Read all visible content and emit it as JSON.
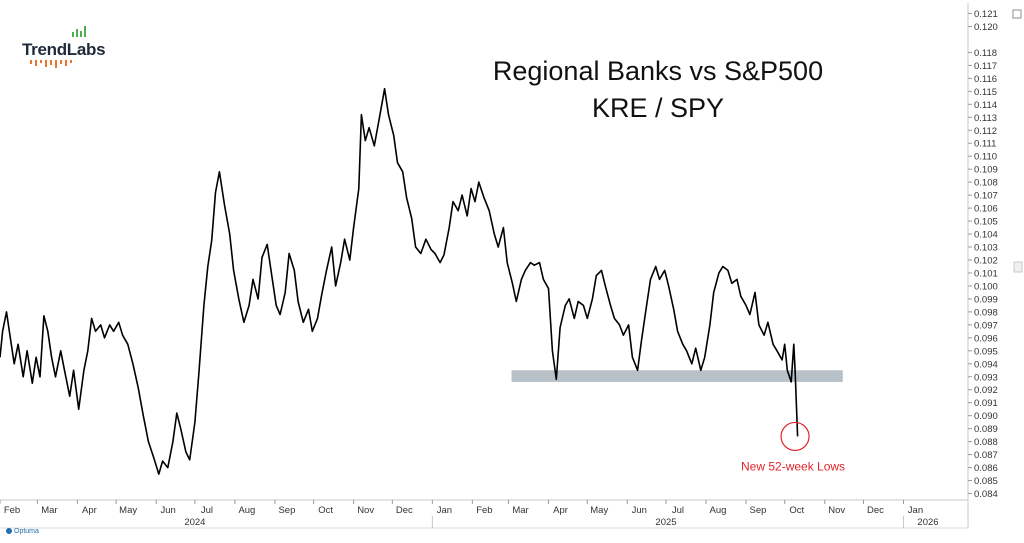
{
  "logo": {
    "text": "TrendLabs"
  },
  "footer": {
    "brand": "Optuma"
  },
  "chart_data": {
    "type": "line",
    "title": "Regional Banks vs S&P500",
    "subtitle": "KRE / SPY",
    "xlabel": "",
    "ylabel": "",
    "ylim": [
      0.0835,
      0.1215
    ],
    "y_ticks": [
      "0.084",
      "0.085",
      "0.086",
      "0.087",
      "0.088",
      "0.089",
      "0.090",
      "0.091",
      "0.092",
      "0.093",
      "0.094",
      "0.095",
      "0.096",
      "0.097",
      "0.098",
      "0.099",
      "0.100",
      "0.101",
      "0.102",
      "0.103",
      "0.104",
      "0.105",
      "0.106",
      "0.107",
      "0.108",
      "0.109",
      "0.110",
      "0.111",
      "0.112",
      "0.113",
      "0.114",
      "0.115",
      "0.116",
      "0.117",
      "0.118",
      "0.120",
      "0.121"
    ],
    "x_range": [
      "2024-02-01",
      "2026-02-20"
    ],
    "month_ticks": [
      {
        "label": "Feb",
        "date": "2024-02-01"
      },
      {
        "label": "Mar",
        "date": "2024-03-01"
      },
      {
        "label": "Apr",
        "date": "2024-04-01"
      },
      {
        "label": "May",
        "date": "2024-05-01"
      },
      {
        "label": "Jun",
        "date": "2024-06-01"
      },
      {
        "label": "Jul",
        "date": "2024-07-01"
      },
      {
        "label": "Aug",
        "date": "2024-08-01"
      },
      {
        "label": "Sep",
        "date": "2024-09-01"
      },
      {
        "label": "Oct",
        "date": "2024-10-01"
      },
      {
        "label": "Nov",
        "date": "2024-11-01"
      },
      {
        "label": "Dec",
        "date": "2024-12-01"
      },
      {
        "label": "Jan",
        "date": "2025-01-01"
      },
      {
        "label": "Feb",
        "date": "2025-02-01"
      },
      {
        "label": "Mar",
        "date": "2025-03-01"
      },
      {
        "label": "Apr",
        "date": "2025-04-01"
      },
      {
        "label": "May",
        "date": "2025-05-01"
      },
      {
        "label": "Jun",
        "date": "2025-06-01"
      },
      {
        "label": "Jul",
        "date": "2025-07-01"
      },
      {
        "label": "Aug",
        "date": "2025-08-01"
      },
      {
        "label": "Sep",
        "date": "2025-09-01"
      },
      {
        "label": "Oct",
        "date": "2025-10-01"
      },
      {
        "label": "Nov",
        "date": "2025-11-01"
      },
      {
        "label": "Dec",
        "date": "2025-12-01"
      },
      {
        "label": "Jan",
        "date": "2026-01-01"
      }
    ],
    "year_labels": [
      {
        "label": "2024",
        "date": "2024-07-01"
      },
      {
        "label": "2025",
        "date": "2025-07-01"
      },
      {
        "label": "2026",
        "date": "2026-01-20"
      }
    ],
    "year_dividers": [
      "2025-01-01",
      "2026-01-01"
    ],
    "support_zone": {
      "x_start": "2025-03-01",
      "x_end": "2025-11-15",
      "y_low": 0.0926,
      "y_high": 0.0935
    },
    "annotation": {
      "text": "New 52-week Lows",
      "x": "2025-10-09",
      "y": 0.0884,
      "color": "#e0242b"
    },
    "grid": false,
    "line_color": "#000000",
    "series": [
      {
        "values": [
          [
            "2024-02-01",
            0.0945
          ],
          [
            "2024-02-03",
            0.0965
          ],
          [
            "2024-02-06",
            0.098
          ],
          [
            "2024-02-09",
            0.096
          ],
          [
            "2024-02-12",
            0.094
          ],
          [
            "2024-02-15",
            0.0955
          ],
          [
            "2024-02-19",
            0.093
          ],
          [
            "2024-02-22",
            0.095
          ],
          [
            "2024-02-26",
            0.0925
          ],
          [
            "2024-02-29",
            0.0945
          ],
          [
            "2024-03-03",
            0.093
          ],
          [
            "2024-03-06",
            0.0977
          ],
          [
            "2024-03-09",
            0.0965
          ],
          [
            "2024-03-12",
            0.0945
          ],
          [
            "2024-03-15",
            0.093
          ],
          [
            "2024-03-19",
            0.095
          ],
          [
            "2024-03-22",
            0.0935
          ],
          [
            "2024-03-26",
            0.0915
          ],
          [
            "2024-03-29",
            0.0935
          ],
          [
            "2024-04-02",
            0.0905
          ],
          [
            "2024-04-06",
            0.0935
          ],
          [
            "2024-04-09",
            0.095
          ],
          [
            "2024-04-12",
            0.0975
          ],
          [
            "2024-04-15",
            0.0965
          ],
          [
            "2024-04-19",
            0.097
          ],
          [
            "2024-04-22",
            0.096
          ],
          [
            "2024-04-26",
            0.097
          ],
          [
            "2024-04-29",
            0.0965
          ],
          [
            "2024-05-03",
            0.0972
          ],
          [
            "2024-05-06",
            0.0962
          ],
          [
            "2024-05-10",
            0.0955
          ],
          [
            "2024-05-14",
            0.094
          ],
          [
            "2024-05-18",
            0.0922
          ],
          [
            "2024-05-22",
            0.09
          ],
          [
            "2024-05-26",
            0.088
          ],
          [
            "2024-05-30",
            0.0868
          ],
          [
            "2024-06-03",
            0.0855
          ],
          [
            "2024-06-06",
            0.0865
          ],
          [
            "2024-06-10",
            0.086
          ],
          [
            "2024-06-14",
            0.088
          ],
          [
            "2024-06-17",
            0.0902
          ],
          [
            "2024-06-20",
            0.089
          ],
          [
            "2024-06-24",
            0.0872
          ],
          [
            "2024-06-27",
            0.0866
          ],
          [
            "2024-07-01",
            0.0895
          ],
          [
            "2024-07-04",
            0.0932
          ],
          [
            "2024-07-08",
            0.0985
          ],
          [
            "2024-07-11",
            0.1015
          ],
          [
            "2024-07-14",
            0.1035
          ],
          [
            "2024-07-17",
            0.1072
          ],
          [
            "2024-07-20",
            0.1088
          ],
          [
            "2024-07-24",
            0.1062
          ],
          [
            "2024-07-28",
            0.104
          ],
          [
            "2024-07-31",
            0.1012
          ],
          [
            "2024-08-04",
            0.099
          ],
          [
            "2024-08-08",
            0.0972
          ],
          [
            "2024-08-12",
            0.0985
          ],
          [
            "2024-08-15",
            0.1005
          ],
          [
            "2024-08-19",
            0.099
          ],
          [
            "2024-08-22",
            0.1022
          ],
          [
            "2024-08-26",
            0.1032
          ],
          [
            "2024-08-29",
            0.1012
          ],
          [
            "2024-09-02",
            0.0985
          ],
          [
            "2024-09-05",
            0.0978
          ],
          [
            "2024-09-09",
            0.0995
          ],
          [
            "2024-09-12",
            0.1025
          ],
          [
            "2024-09-16",
            0.1012
          ],
          [
            "2024-09-19",
            0.0988
          ],
          [
            "2024-09-23",
            0.0972
          ],
          [
            "2024-09-27",
            0.0982
          ],
          [
            "2024-09-30",
            0.0965
          ],
          [
            "2024-10-04",
            0.0975
          ],
          [
            "2024-10-07",
            0.0992
          ],
          [
            "2024-10-11",
            0.1012
          ],
          [
            "2024-10-15",
            0.103
          ],
          [
            "2024-10-18",
            0.1
          ],
          [
            "2024-10-22",
            0.1018
          ],
          [
            "2024-10-25",
            0.1036
          ],
          [
            "2024-10-29",
            0.102
          ],
          [
            "2024-11-01",
            0.1045
          ],
          [
            "2024-11-05",
            0.1075
          ],
          [
            "2024-11-07",
            0.1132
          ],
          [
            "2024-11-10",
            0.1112
          ],
          [
            "2024-11-13",
            0.1122
          ],
          [
            "2024-11-17",
            0.1108
          ],
          [
            "2024-11-21",
            0.113
          ],
          [
            "2024-11-25",
            0.1152
          ],
          [
            "2024-11-28",
            0.1132
          ],
          [
            "2024-12-02",
            0.1116
          ],
          [
            "2024-12-05",
            0.1095
          ],
          [
            "2024-12-09",
            0.1088
          ],
          [
            "2024-12-12",
            0.1068
          ],
          [
            "2024-12-16",
            0.1052
          ],
          [
            "2024-12-19",
            0.103
          ],
          [
            "2024-12-23",
            0.1025
          ],
          [
            "2024-12-27",
            0.1036
          ],
          [
            "2024-12-31",
            0.1028
          ],
          [
            "2025-01-03",
            0.1025
          ],
          [
            "2025-01-07",
            0.1018
          ],
          [
            "2025-01-10",
            0.1024
          ],
          [
            "2025-01-14",
            0.1045
          ],
          [
            "2025-01-17",
            0.1065
          ],
          [
            "2025-01-21",
            0.1058
          ],
          [
            "2025-01-24",
            0.107
          ],
          [
            "2025-01-28",
            0.1054
          ],
          [
            "2025-01-31",
            0.1075
          ],
          [
            "2025-02-03",
            0.1065
          ],
          [
            "2025-02-06",
            0.108
          ],
          [
            "2025-02-10",
            0.1068
          ],
          [
            "2025-02-14",
            0.1058
          ],
          [
            "2025-02-18",
            0.104
          ],
          [
            "2025-02-21",
            0.103
          ],
          [
            "2025-02-25",
            0.1045
          ],
          [
            "2025-02-28",
            0.1018
          ],
          [
            "2025-03-04",
            0.1002
          ],
          [
            "2025-03-07",
            0.0988
          ],
          [
            "2025-03-11",
            0.1005
          ],
          [
            "2025-03-14",
            0.1012
          ],
          [
            "2025-03-18",
            0.1018
          ],
          [
            "2025-03-21",
            0.1016
          ],
          [
            "2025-03-25",
            0.1018
          ],
          [
            "2025-03-28",
            0.1005
          ],
          [
            "2025-04-01",
            0.0998
          ],
          [
            "2025-04-04",
            0.095
          ],
          [
            "2025-04-07",
            0.0928
          ],
          [
            "2025-04-10",
            0.0968
          ],
          [
            "2025-04-14",
            0.0985
          ],
          [
            "2025-04-17",
            0.099
          ],
          [
            "2025-04-21",
            0.0975
          ],
          [
            "2025-04-24",
            0.0988
          ],
          [
            "2025-04-28",
            0.0985
          ],
          [
            "2025-05-01",
            0.0975
          ],
          [
            "2025-05-05",
            0.099
          ],
          [
            "2025-05-08",
            0.1008
          ],
          [
            "2025-05-12",
            0.1012
          ],
          [
            "2025-05-15",
            0.1
          ],
          [
            "2025-05-19",
            0.0985
          ],
          [
            "2025-05-22",
            0.0975
          ],
          [
            "2025-05-26",
            0.097
          ],
          [
            "2025-05-29",
            0.0962
          ],
          [
            "2025-06-02",
            0.097
          ],
          [
            "2025-06-05",
            0.0945
          ],
          [
            "2025-06-09",
            0.0935
          ],
          [
            "2025-06-12",
            0.0958
          ],
          [
            "2025-06-16",
            0.0985
          ],
          [
            "2025-06-19",
            0.1005
          ],
          [
            "2025-06-23",
            0.1015
          ],
          [
            "2025-06-26",
            0.1005
          ],
          [
            "2025-06-30",
            0.1012
          ],
          [
            "2025-07-03",
            0.1
          ],
          [
            "2025-07-07",
            0.0982
          ],
          [
            "2025-07-10",
            0.0965
          ],
          [
            "2025-07-14",
            0.0955
          ],
          [
            "2025-07-17",
            0.095
          ],
          [
            "2025-07-21",
            0.094
          ],
          [
            "2025-07-24",
            0.0952
          ],
          [
            "2025-07-28",
            0.0935
          ],
          [
            "2025-07-31",
            0.0945
          ],
          [
            "2025-08-04",
            0.097
          ],
          [
            "2025-08-07",
            0.0995
          ],
          [
            "2025-08-11",
            0.101
          ],
          [
            "2025-08-14",
            0.1015
          ],
          [
            "2025-08-18",
            0.1012
          ],
          [
            "2025-08-21",
            0.1002
          ],
          [
            "2025-08-25",
            0.1005
          ],
          [
            "2025-08-28",
            0.0992
          ],
          [
            "2025-09-01",
            0.0985
          ],
          [
            "2025-09-04",
            0.0978
          ],
          [
            "2025-09-08",
            0.0995
          ],
          [
            "2025-09-11",
            0.097
          ],
          [
            "2025-09-15",
            0.0962
          ],
          [
            "2025-09-18",
            0.0972
          ],
          [
            "2025-09-22",
            0.0955
          ],
          [
            "2025-09-25",
            0.095
          ],
          [
            "2025-09-29",
            0.0943
          ],
          [
            "2025-10-01",
            0.0955
          ],
          [
            "2025-10-03",
            0.0935
          ],
          [
            "2025-10-06",
            0.0926
          ],
          [
            "2025-10-08",
            0.0955
          ],
          [
            "2025-10-09",
            0.0935
          ],
          [
            "2025-10-11",
            0.0884
          ]
        ]
      }
    ]
  }
}
